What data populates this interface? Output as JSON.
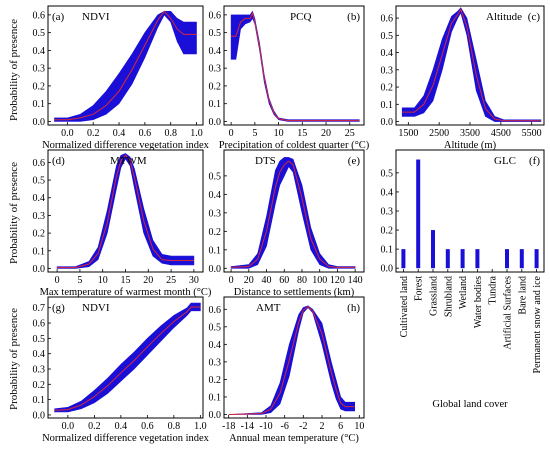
{
  "figure": {
    "ylabel_rows": [
      "Probability of presence",
      "Probability of presence",
      "Probability of presence"
    ]
  },
  "chart_data": [
    {
      "id": "a",
      "tag": "(a)",
      "name": "NDVI",
      "type": "area",
      "xlabel": "Normalized difference vegetation index",
      "xlim": [
        -0.15,
        1.05
      ],
      "ylim": [
        -0.02,
        0.65
      ],
      "xticks": [
        0,
        0.2,
        0.4,
        0.6,
        0.8,
        1
      ],
      "xtick_labels": [
        "0.0",
        "0.2",
        "0.4",
        "0.6",
        "0.8",
        "1.0"
      ],
      "yticks": [
        0,
        0.1,
        0.2,
        0.3,
        0.4,
        0.5,
        0.6
      ],
      "ytick_labels": [
        "0.0",
        "0.1",
        "0.2",
        "0.3",
        "0.4",
        "0.5",
        "0.6"
      ],
      "x": [
        -0.1,
        0.0,
        0.1,
        0.2,
        0.3,
        0.4,
        0.5,
        0.6,
        0.7,
        0.75,
        0.8,
        0.85,
        0.9,
        1.0
      ],
      "lower": [
        0.0,
        0.0,
        0.0,
        0.01,
        0.04,
        0.1,
        0.21,
        0.36,
        0.53,
        0.6,
        0.56,
        0.45,
        0.38,
        0.38
      ],
      "upper": [
        0.02,
        0.02,
        0.04,
        0.09,
        0.17,
        0.27,
        0.38,
        0.5,
        0.6,
        0.62,
        0.62,
        0.58,
        0.56,
        0.56
      ],
      "mean": [
        0.01,
        0.01,
        0.02,
        0.04,
        0.09,
        0.17,
        0.29,
        0.43,
        0.57,
        0.62,
        0.58,
        0.52,
        0.49,
        0.49
      ]
    },
    {
      "id": "b",
      "tag": "(b)",
      "name": "PCQ",
      "type": "area",
      "xlabel": "Precipitation of coldest quarter (°C)",
      "xlim": [
        -1.5,
        28
      ],
      "ylim": [
        -0.02,
        0.65
      ],
      "xticks": [
        0,
        5,
        10,
        15,
        20,
        25
      ],
      "xtick_labels": [
        "0",
        "5",
        "10",
        "15",
        "20",
        "25"
      ],
      "yticks": [
        0,
        0.1,
        0.2,
        0.3,
        0.4,
        0.5,
        0.6
      ],
      "ytick_labels": [
        "0.0",
        "0.1",
        "0.2",
        "0.3",
        "0.4",
        "0.5",
        "0.6"
      ],
      "x": [
        0,
        1,
        2,
        3,
        4,
        4.5,
        5,
        6,
        7,
        8,
        9,
        10,
        12,
        15,
        20,
        27
      ],
      "lower": [
        0.35,
        0.35,
        0.52,
        0.55,
        0.56,
        0.58,
        0.55,
        0.4,
        0.22,
        0.1,
        0.04,
        0.01,
        0.0,
        0.0,
        0.0,
        0.0
      ],
      "upper": [
        0.6,
        0.6,
        0.6,
        0.6,
        0.6,
        0.62,
        0.58,
        0.44,
        0.26,
        0.13,
        0.06,
        0.02,
        0.01,
        0.01,
        0.01,
        0.01
      ],
      "mean": [
        0.48,
        0.48,
        0.56,
        0.58,
        0.58,
        0.61,
        0.56,
        0.42,
        0.24,
        0.12,
        0.05,
        0.015,
        0.005,
        0.005,
        0.005,
        0.005
      ]
    },
    {
      "id": "c",
      "tag": "(c)",
      "name": "Altitude",
      "type": "area",
      "xlabel": "Altitude (m)",
      "xlim": [
        1100,
        5900
      ],
      "ylim": [
        -0.02,
        0.67
      ],
      "xticks": [
        1500,
        2500,
        3500,
        4500,
        5500
      ],
      "xtick_labels": [
        "1500",
        "2500",
        "3500",
        "4500",
        "5500"
      ],
      "yticks": [
        0,
        0.1,
        0.2,
        0.3,
        0.4,
        0.5,
        0.6
      ],
      "ytick_labels": [
        "0.0",
        "0.1",
        "0.2",
        "0.3",
        "0.4",
        "0.5",
        "0.6"
      ],
      "x": [
        1300,
        1700,
        2000,
        2300,
        2600,
        2900,
        3100,
        3200,
        3400,
        3700,
        4000,
        4300,
        4600,
        5000,
        5800
      ],
      "lower": [
        0.03,
        0.03,
        0.05,
        0.12,
        0.3,
        0.52,
        0.6,
        0.63,
        0.5,
        0.18,
        0.03,
        0.0,
        0.0,
        0.0,
        0.0
      ],
      "upper": [
        0.08,
        0.08,
        0.15,
        0.3,
        0.48,
        0.61,
        0.64,
        0.66,
        0.6,
        0.36,
        0.12,
        0.03,
        0.01,
        0.01,
        0.01
      ],
      "mean": [
        0.055,
        0.055,
        0.1,
        0.21,
        0.39,
        0.57,
        0.62,
        0.65,
        0.55,
        0.27,
        0.075,
        0.015,
        0.005,
        0.005,
        0.005
      ]
    },
    {
      "id": "d",
      "tag": "(d)",
      "name": "MTWM",
      "type": "area",
      "xlabel": "Max temperature of warmest month (°C)",
      "xlim": [
        -2,
        32
      ],
      "ylim": [
        -0.02,
        0.67
      ],
      "xticks": [
        0,
        5,
        10,
        15,
        20,
        25,
        30
      ],
      "xtick_labels": [
        "0",
        "5",
        "10",
        "15",
        "20",
        "25",
        "30"
      ],
      "yticks": [
        0,
        0.1,
        0.2,
        0.3,
        0.4,
        0.5,
        0.6
      ],
      "ytick_labels": [
        "0.0",
        "0.1",
        "0.2",
        "0.3",
        "0.4",
        "0.5",
        "0.6"
      ],
      "x": [
        0,
        4,
        7,
        9,
        11,
        13,
        14,
        15,
        16,
        17,
        19,
        21,
        23,
        25,
        27,
        30
      ],
      "lower": [
        0.0,
        0.0,
        0.01,
        0.05,
        0.2,
        0.45,
        0.57,
        0.62,
        0.58,
        0.45,
        0.2,
        0.07,
        0.03,
        0.02,
        0.02,
        0.02
      ],
      "upper": [
        0.01,
        0.01,
        0.04,
        0.12,
        0.33,
        0.58,
        0.64,
        0.65,
        0.63,
        0.56,
        0.34,
        0.16,
        0.08,
        0.07,
        0.07,
        0.07
      ],
      "mean": [
        0.005,
        0.005,
        0.025,
        0.085,
        0.26,
        0.52,
        0.61,
        0.64,
        0.61,
        0.51,
        0.27,
        0.11,
        0.05,
        0.045,
        0.045,
        0.045
      ]
    },
    {
      "id": "e",
      "tag": "(e)",
      "name": "DTS",
      "type": "area",
      "xlabel": "Distance to settlements (km)",
      "xlim": [
        -8,
        150
      ],
      "ylim": [
        -0.02,
        0.64
      ],
      "xticks": [
        0,
        20,
        40,
        60,
        80,
        100,
        120,
        140
      ],
      "xtick_labels": [
        "0",
        "20",
        "40",
        "60",
        "80",
        "100",
        "120",
        "140"
      ],
      "yticks": [
        0,
        0.1,
        0.2,
        0.3,
        0.4,
        0.5
      ],
      "ytick_labels": [
        "0.0",
        "0.1",
        "0.2",
        "0.3",
        "0.4",
        "0.5"
      ],
      "x": [
        0,
        20,
        30,
        40,
        50,
        55,
        60,
        65,
        70,
        80,
        90,
        100,
        110,
        120,
        140
      ],
      "lower": [
        0.0,
        0.0,
        0.02,
        0.12,
        0.35,
        0.45,
        0.5,
        0.55,
        0.52,
        0.3,
        0.1,
        0.02,
        0.0,
        0.0,
        0.0
      ],
      "upper": [
        0.01,
        0.02,
        0.08,
        0.28,
        0.53,
        0.58,
        0.6,
        0.6,
        0.59,
        0.45,
        0.22,
        0.08,
        0.02,
        0.01,
        0.01
      ],
      "mean": [
        0.005,
        0.01,
        0.05,
        0.2,
        0.44,
        0.52,
        0.56,
        0.58,
        0.56,
        0.38,
        0.16,
        0.05,
        0.01,
        0.005,
        0.005
      ]
    },
    {
      "id": "f",
      "tag": "(f)",
      "name": "GLC",
      "type": "bar",
      "xlabel": "Global land cover",
      "ylim": [
        -0.02,
        0.62
      ],
      "yticks": [
        0,
        0.1,
        0.2,
        0.3,
        0.4,
        0.5
      ],
      "ytick_labels": [
        "0.0",
        "0.1",
        "0.2",
        "0.3",
        "0.4",
        "0.5"
      ],
      "categories": [
        "Cultivated land",
        "Forest",
        "Grassland",
        "Shrubland",
        "Wetland",
        "Water bodies",
        "Tundra",
        "Artificial Surfaces",
        "Bare land",
        "Permanent snow and ice"
      ],
      "values": [
        0.1,
        0.57,
        0.2,
        0.1,
        0.1,
        0.1,
        0.0,
        0.1,
        0.1,
        0.1
      ]
    },
    {
      "id": "g",
      "tag": "(g)",
      "name": "NDVI",
      "type": "area",
      "xlabel": "Normalized difference vegetation index",
      "xlim": [
        -0.15,
        1.02
      ],
      "ylim": [
        -0.02,
        0.77
      ],
      "xticks": [
        0,
        0.2,
        0.4,
        0.6,
        0.8,
        1
      ],
      "xtick_labels": [
        "0.0",
        "0.2",
        "0.4",
        "0.6",
        "0.8",
        "1.0"
      ],
      "yticks": [
        0,
        0.1,
        0.2,
        0.3,
        0.4,
        0.5,
        0.6,
        0.7
      ],
      "ytick_labels": [
        "0.0",
        "0.1",
        "0.2",
        "0.3",
        "0.4",
        "0.5",
        "0.6",
        "0.7"
      ],
      "x": [
        -0.1,
        0.0,
        0.1,
        0.2,
        0.3,
        0.4,
        0.5,
        0.6,
        0.7,
        0.8,
        0.9,
        0.93,
        1.0
      ],
      "lower": [
        0.02,
        0.02,
        0.04,
        0.08,
        0.14,
        0.22,
        0.3,
        0.39,
        0.48,
        0.57,
        0.65,
        0.68,
        0.68
      ],
      "upper": [
        0.04,
        0.05,
        0.09,
        0.16,
        0.24,
        0.33,
        0.41,
        0.5,
        0.58,
        0.65,
        0.7,
        0.73,
        0.73
      ],
      "mean": [
        0.03,
        0.035,
        0.065,
        0.12,
        0.19,
        0.275,
        0.355,
        0.445,
        0.53,
        0.61,
        0.675,
        0.705,
        0.705
      ]
    },
    {
      "id": "h",
      "tag": "(h)",
      "name": "AMT",
      "type": "area",
      "xlabel": "Annual mean temperature (°C)",
      "xlim": [
        -19,
        11
      ],
      "ylim": [
        -0.02,
        0.67
      ],
      "xticks": [
        -18,
        -14,
        -10,
        -6,
        -2,
        2,
        6,
        10
      ],
      "xtick_labels": [
        "-18",
        "-14",
        "-10",
        "-6",
        "-2",
        "2",
        "6",
        "10"
      ],
      "yticks": [
        0,
        0.1,
        0.2,
        0.3,
        0.4,
        0.5,
        0.6
      ],
      "ytick_labels": [
        "0.0",
        "0.1",
        "0.2",
        "0.3",
        "0.4",
        "0.5",
        "0.6"
      ],
      "x": [
        -18,
        -11,
        -9,
        -7,
        -5,
        -3,
        -2,
        -1,
        0,
        2,
        4,
        5,
        6,
        7,
        9
      ],
      "lower": [
        0.0,
        0.0,
        0.01,
        0.06,
        0.22,
        0.48,
        0.58,
        0.61,
        0.58,
        0.4,
        0.18,
        0.09,
        0.03,
        0.02,
        0.02
      ],
      "upper": [
        0.0,
        0.01,
        0.05,
        0.18,
        0.4,
        0.57,
        0.61,
        0.62,
        0.6,
        0.52,
        0.3,
        0.2,
        0.1,
        0.07,
        0.07
      ],
      "mean": [
        0.0,
        0.005,
        0.03,
        0.12,
        0.31,
        0.525,
        0.595,
        0.615,
        0.59,
        0.46,
        0.24,
        0.145,
        0.065,
        0.045,
        0.045
      ]
    }
  ]
}
